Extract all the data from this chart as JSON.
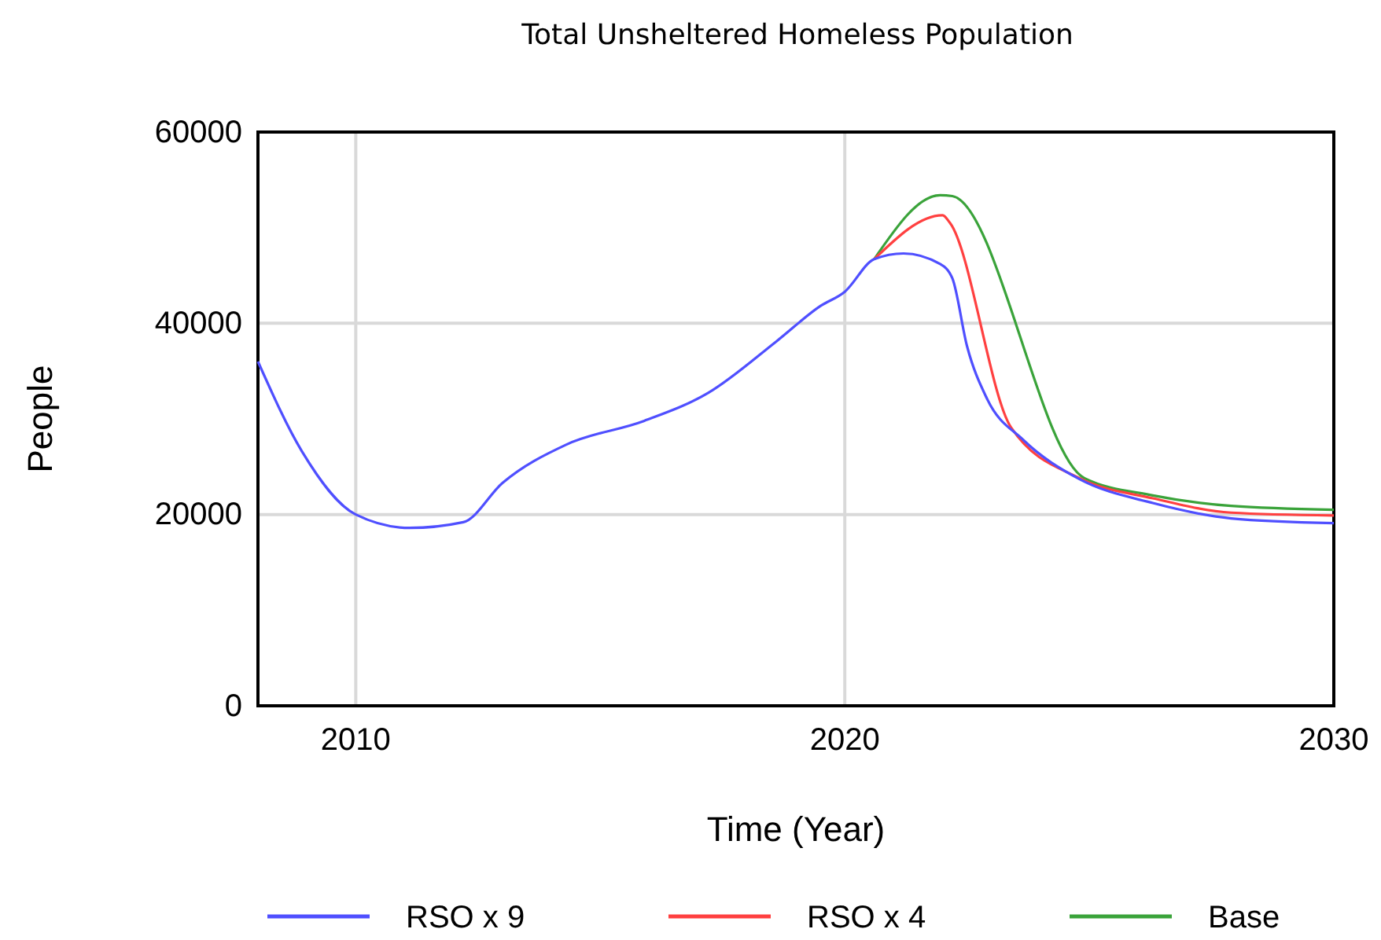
{
  "chart_data": {
    "type": "line",
    "title": "Total Unsheltered Homeless Population",
    "xlabel": "Time (Year)",
    "ylabel": "People",
    "xlim": [
      2008,
      2030
    ],
    "xticks": [
      2010,
      2020,
      2030
    ],
    "ylim": [
      0,
      60000
    ],
    "yticks": [
      0,
      20000,
      40000,
      60000
    ],
    "grid": true,
    "legend": "bottom",
    "marker": "none",
    "line_style": "solid",
    "series": [
      {
        "name": "RSO x 9",
        "color": "#4f4fff",
        "x": [
          2008,
          2008.9,
          2010,
          2011.1,
          2012.2,
          2013,
          2014.3,
          2015.9,
          2017.2,
          2018.6,
          2019.5,
          2020,
          2020.6,
          2021.2,
          2021.95,
          2022.2,
          2022.5,
          2022.9,
          2023.65,
          2024.8,
          2026.3,
          2027.9,
          2030
        ],
        "values": [
          36000,
          26600,
          20000,
          18600,
          19200,
          23300,
          27300,
          29800,
          32700,
          38100,
          41800,
          43300,
          46700,
          47300,
          46200,
          44700,
          37600,
          32200,
          27800,
          23700,
          21200,
          19600,
          19100
        ]
      },
      {
        "name": "RSO x 4",
        "color": "#ff4040",
        "x": [
          2020.6,
          2022,
          2022.15,
          2023.4,
          2024.8,
          2026.3,
          2027.9,
          2030
        ],
        "values": [
          46700,
          51300,
          50500,
          29100,
          23800,
          21700,
          20200,
          19900
        ]
      },
      {
        "name": "Base",
        "color": "#3aa33a",
        "x": [
          2020.6,
          2021.95,
          2022.2,
          2024.9,
          2026.3,
          2027.9,
          2030
        ],
        "values": [
          46700,
          53400,
          53300,
          23800,
          22000,
          20900,
          20500
        ]
      }
    ]
  }
}
